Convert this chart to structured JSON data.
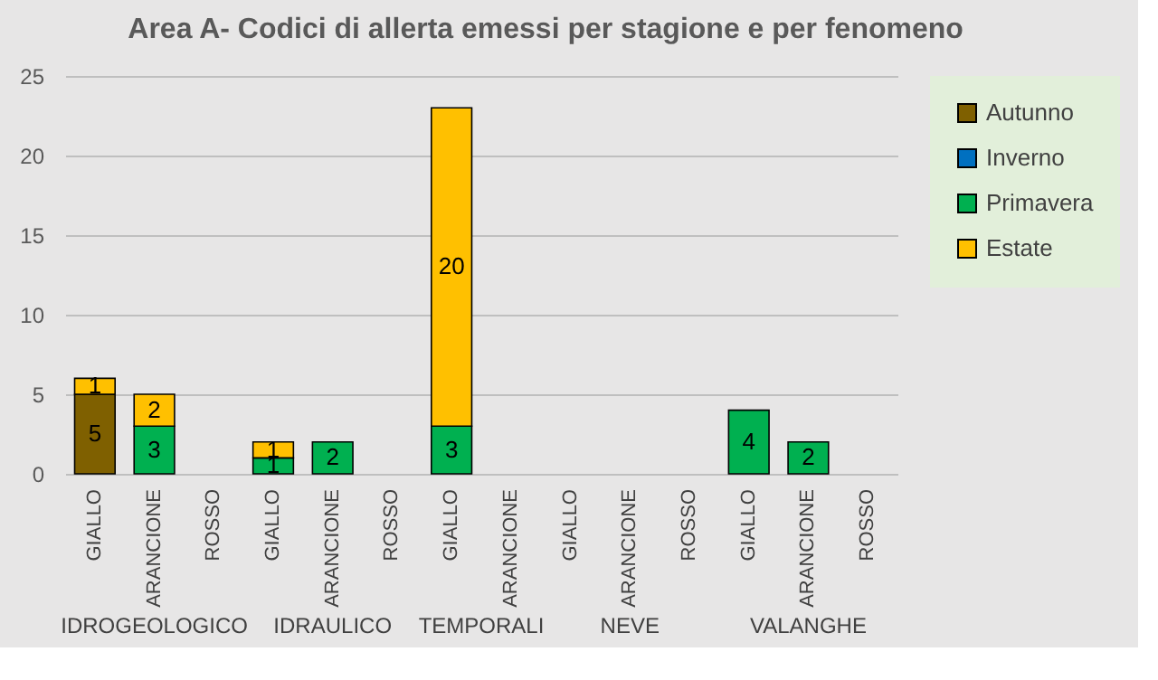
{
  "chart_data": {
    "type": "bar",
    "stacked": true,
    "title": "Area A- Codici di allerta emessi per stagione e per fenomeno",
    "categories": [
      "GIALLO",
      "ARANCIONE",
      "ROSSO",
      "GIALLO",
      "ARANCIONE",
      "ROSSO",
      "GIALLO",
      "ARANCIONE",
      "GIALLO",
      "ARANCIONE",
      "ROSSO",
      "GIALLO",
      "ARANCIONE",
      "ROSSO"
    ],
    "series": [
      {
        "name": "Autunno",
        "color": "#7f6000",
        "values": [
          5,
          null,
          null,
          null,
          null,
          null,
          null,
          null,
          null,
          null,
          null,
          null,
          null,
          null
        ]
      },
      {
        "name": "Inverno",
        "color": "#0070c0",
        "values": [
          null,
          null,
          null,
          null,
          null,
          null,
          null,
          null,
          null,
          null,
          null,
          null,
          null,
          null
        ]
      },
      {
        "name": "Primavera",
        "color": "#00b050",
        "values": [
          null,
          3,
          null,
          1,
          2,
          null,
          3,
          null,
          null,
          null,
          null,
          4,
          2,
          null
        ]
      },
      {
        "name": "Estate",
        "color": "#ffc000",
        "values": [
          1,
          2,
          null,
          1,
          null,
          null,
          20,
          null,
          null,
          null,
          null,
          null,
          null,
          null
        ]
      }
    ],
    "annotations": [
      "IDROGEOLOGICO",
      "IDRAULICO",
      "TEMPORALI",
      "NEVE",
      "VALANGHE"
    ],
    "ylim": [
      0,
      25
    ],
    "yticks": [
      0,
      5,
      10,
      15,
      20,
      25
    ],
    "grid": "y",
    "legend": "right",
    "data_labels": true
  }
}
